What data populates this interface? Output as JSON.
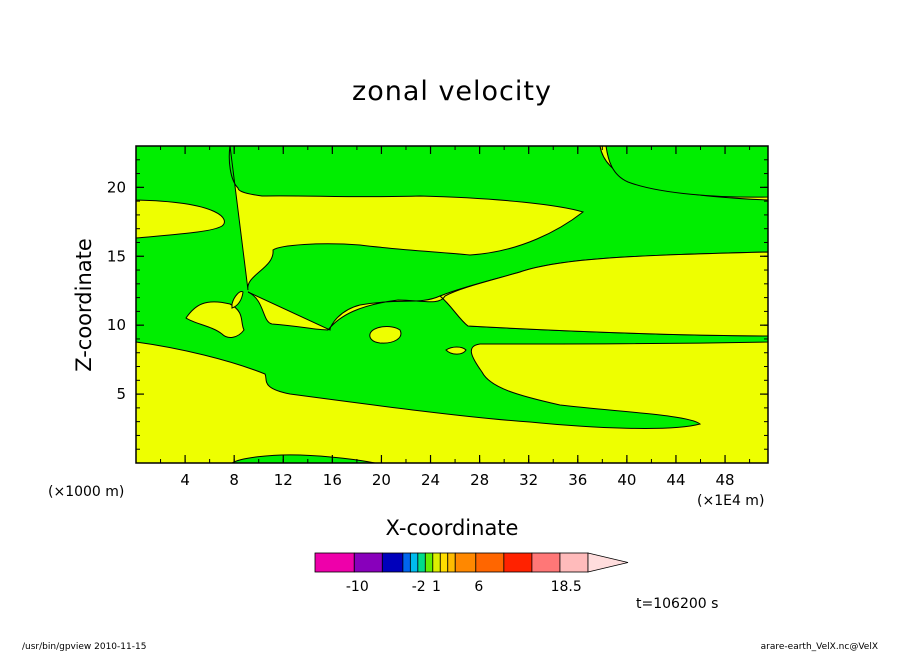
{
  "chart_data": {
    "type": "contour",
    "title": "zonal velocity",
    "xlabel": "X-coordinate",
    "ylabel": "Z-coordinate",
    "x_unit_note": "(×1000 m)",
    "x_scale_note": "(×1E4 m)",
    "time_label": "t=106200 s",
    "xlim": [
      0,
      51.5
    ],
    "ylim": [
      0,
      23
    ],
    "x_ticks": [
      4,
      8,
      12,
      16,
      20,
      24,
      28,
      32,
      36,
      40,
      44,
      48
    ],
    "y_ticks": [
      5,
      10,
      15,
      20
    ],
    "fill_colors": {
      "positive": "#eeff00",
      "negative": "#00ee00"
    },
    "colorbar": {
      "colors": [
        "#ee00aa",
        "#8800bb",
        "#0000bb",
        "#0066ee",
        "#00bbee",
        "#00dd88",
        "#66ee00",
        "#ddee00",
        "#ffdd00",
        "#ffbb00",
        "#ff8800",
        "#ff6600",
        "#ff2200",
        "#ff7777",
        "#ffbbbb",
        "#ffdddd"
      ],
      "labels": [
        {
          "text": "-10",
          "pos": 0.155
        },
        {
          "text": "-2",
          "pos": 0.38
        },
        {
          "text": "1",
          "pos": 0.445
        },
        {
          "text": "6",
          "pos": 0.6
        },
        {
          "text": "18.5",
          "pos": 0.92
        }
      ]
    }
  },
  "footer": {
    "left": "/usr/bin/gpview   2010-11-15",
    "right": "arare-earth_VelX.nc@VelX"
  }
}
